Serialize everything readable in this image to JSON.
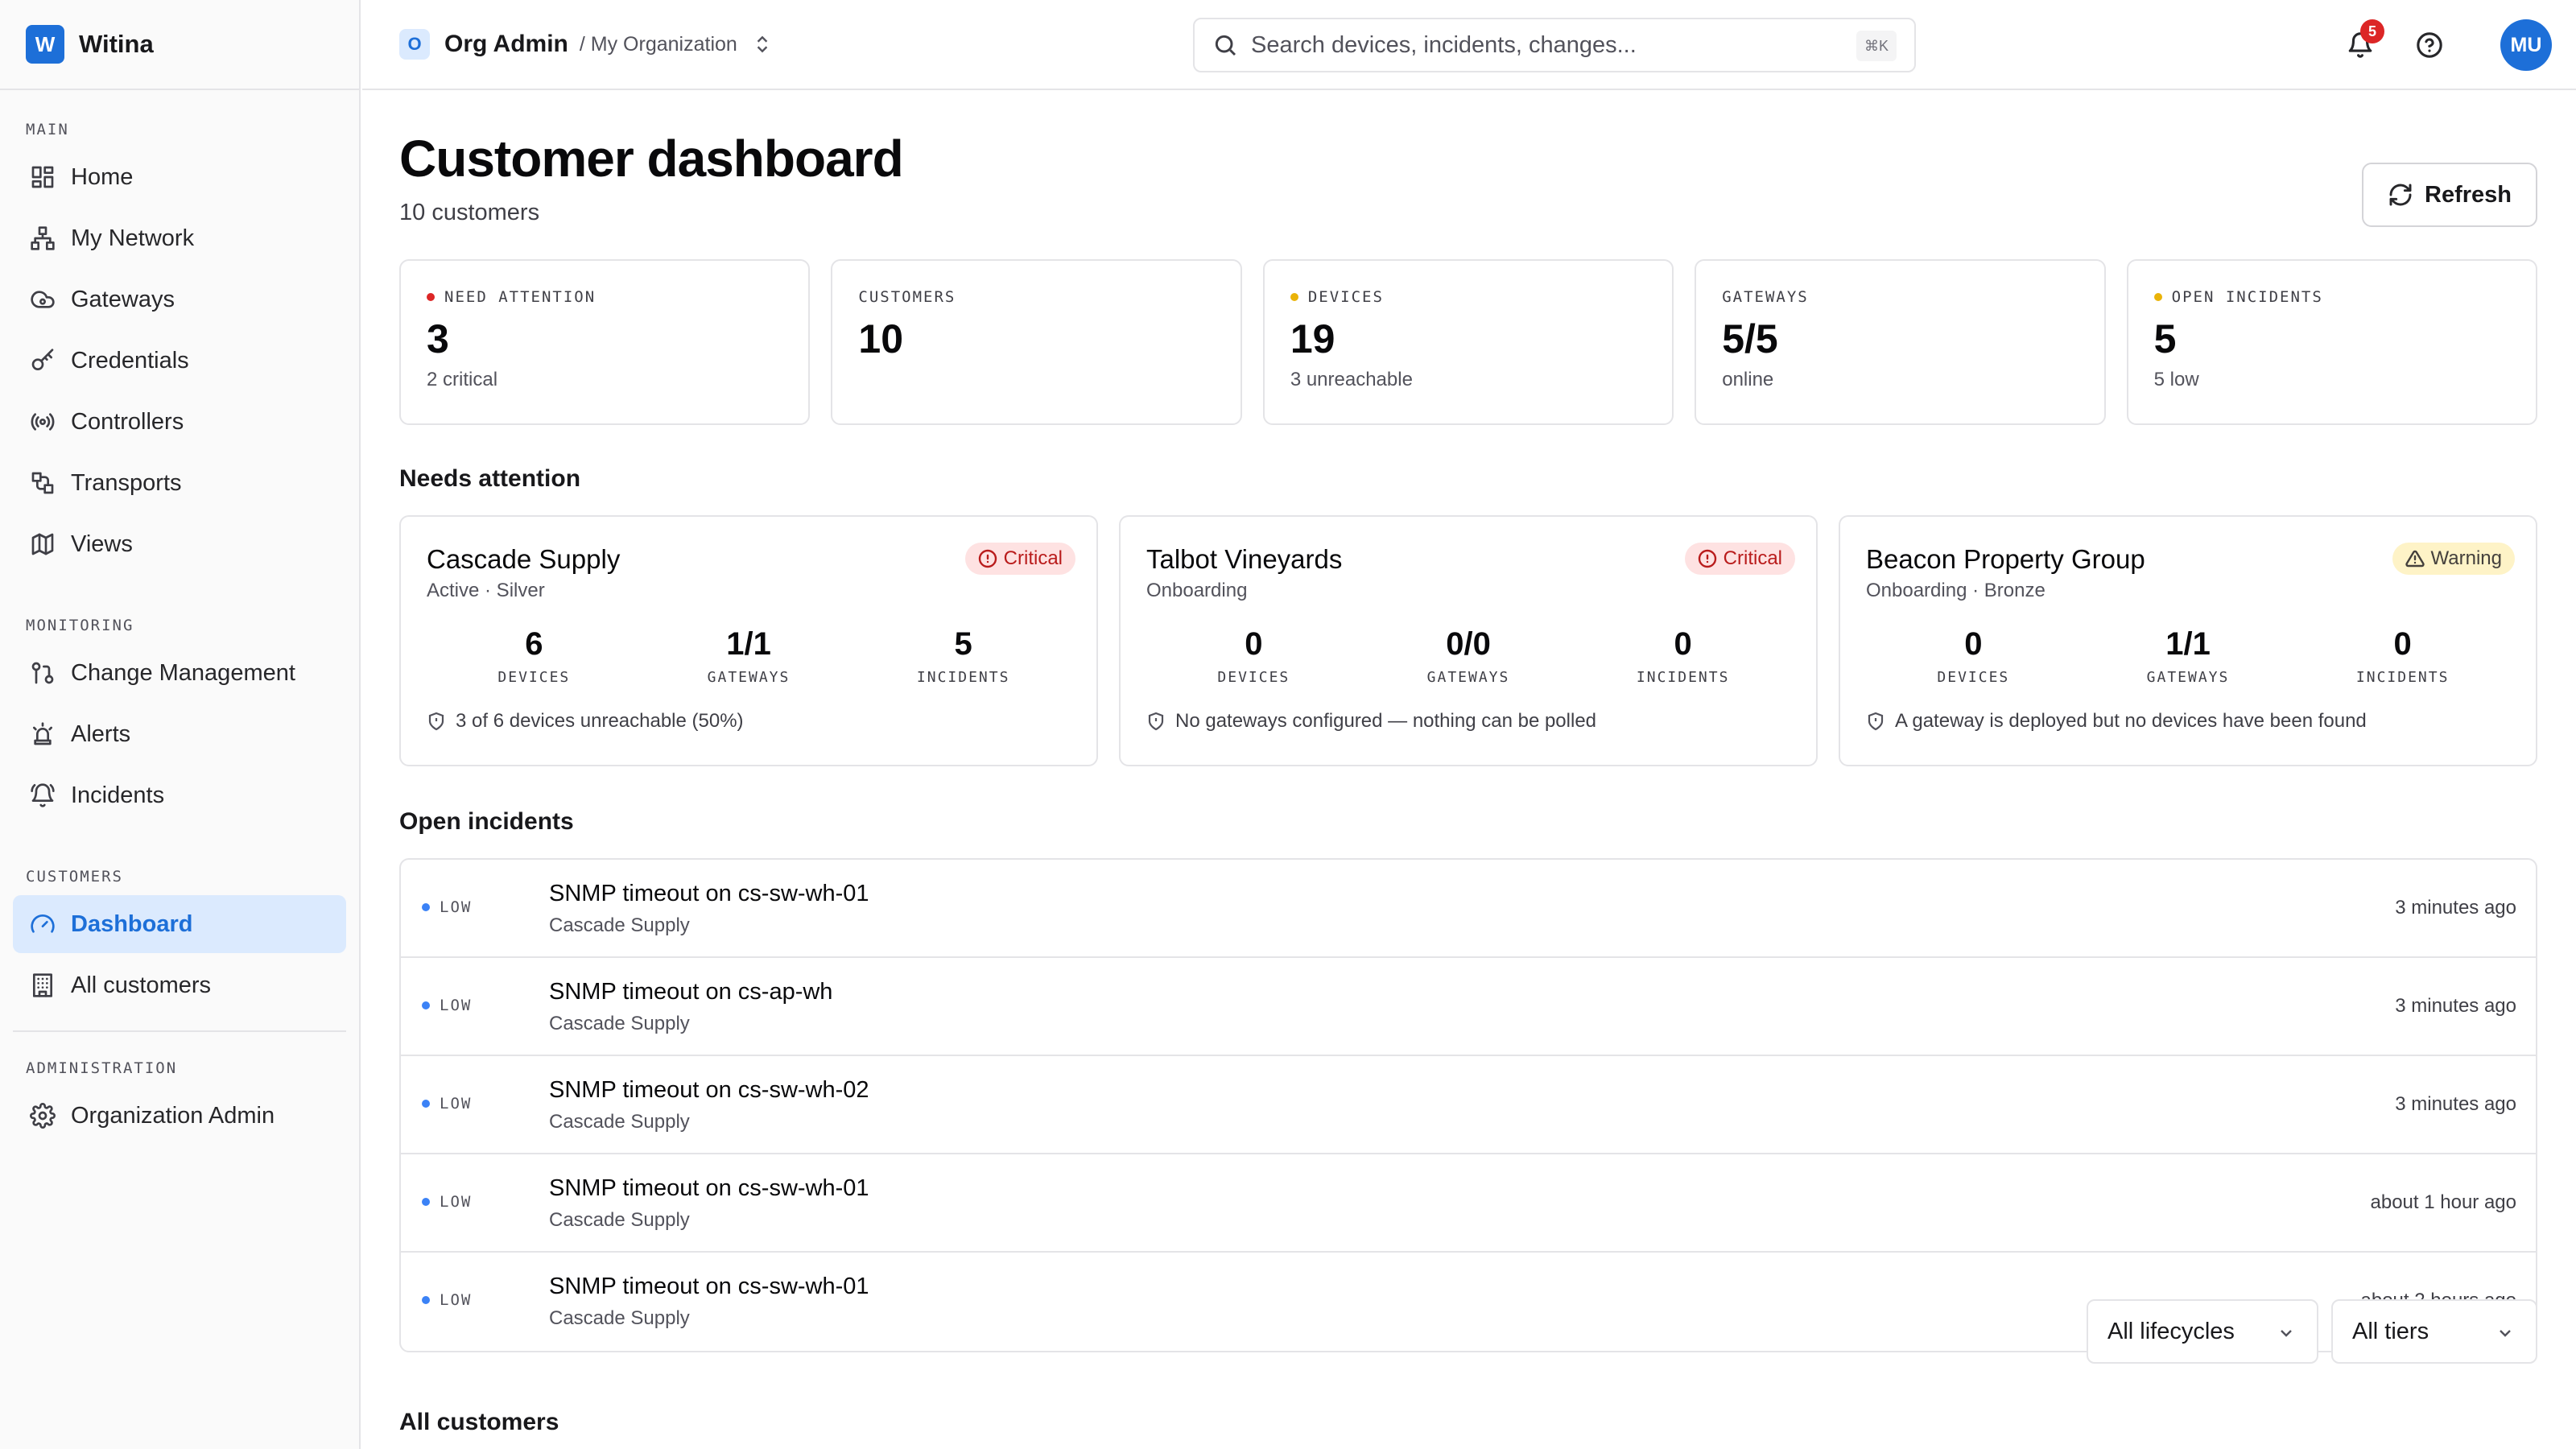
{
  "app": {
    "logo_letter": "W",
    "name": "Witina"
  },
  "sidebar": {
    "sections": [
      {
        "label": "MAIN",
        "items": [
          "Home",
          "My Network",
          "Gateways",
          "Credentials",
          "Controllers",
          "Transports",
          "Views"
        ]
      },
      {
        "label": "MONITORING",
        "items": [
          "Change Management",
          "Alerts",
          "Incidents"
        ]
      },
      {
        "label": "CUSTOMERS",
        "items": [
          "Dashboard",
          "All customers"
        ]
      },
      {
        "label": "ADMINISTRATION",
        "items": [
          "Organization Admin"
        ]
      }
    ],
    "active_item": "Dashboard"
  },
  "topbar": {
    "org_badge": "O",
    "org_title": "Org Admin",
    "org_sub": "/ My Organization",
    "search_placeholder": "Search devices, incidents, changes...",
    "search_shortcut": "⌘K",
    "notification_count": "5",
    "avatar_initials": "MU"
  },
  "page": {
    "title": "Customer dashboard",
    "subtitle": "10 customers",
    "refresh_label": "Refresh"
  },
  "stats": [
    {
      "label": "NEED ATTENTION",
      "value": "3",
      "sub": "2 critical",
      "dot_color": "#dc2626"
    },
    {
      "label": "CUSTOMERS",
      "value": "10",
      "sub": "",
      "dot_color": ""
    },
    {
      "label": "DEVICES",
      "value": "19",
      "sub": "3 unreachable",
      "dot_color": "#eab308"
    },
    {
      "label": "GATEWAYS",
      "value": "5/5",
      "sub": "online",
      "dot_color": ""
    },
    {
      "label": "OPEN INCIDENTS",
      "value": "5",
      "sub": "5 low",
      "dot_color": "#eab308"
    }
  ],
  "needs_attention": {
    "title": "Needs attention",
    "cards": [
      {
        "name": "Cascade Supply",
        "meta": "Active · Silver",
        "status": "Critical",
        "devices": "6",
        "gateways": "1/1",
        "incidents": "5",
        "note": "3 of 6 devices unreachable (50%)"
      },
      {
        "name": "Talbot Vineyards",
        "meta": "Onboarding",
        "status": "Critical",
        "devices": "0",
        "gateways": "0/0",
        "incidents": "0",
        "note": "No gateways configured — nothing can be polled"
      },
      {
        "name": "Beacon Property Group",
        "meta": "Onboarding · Bronze",
        "status": "Warning",
        "devices": "0",
        "gateways": "1/1",
        "incidents": "0",
        "note": "A gateway is deployed but no devices have been found"
      }
    ],
    "metric_labels": {
      "devices": "DEVICES",
      "gateways": "GATEWAYS",
      "incidents": "INCIDENTS"
    }
  },
  "open_incidents": {
    "title": "Open incidents",
    "rows": [
      {
        "severity": "LOW",
        "title": "SNMP timeout on cs-sw-wh-01",
        "customer": "Cascade Supply",
        "time": "3 minutes ago"
      },
      {
        "severity": "LOW",
        "title": "SNMP timeout on cs-ap-wh",
        "customer": "Cascade Supply",
        "time": "3 minutes ago"
      },
      {
        "severity": "LOW",
        "title": "SNMP timeout on cs-sw-wh-02",
        "customer": "Cascade Supply",
        "time": "3 minutes ago"
      },
      {
        "severity": "LOW",
        "title": "SNMP timeout on cs-sw-wh-01",
        "customer": "Cascade Supply",
        "time": "about 1 hour ago"
      },
      {
        "severity": "LOW",
        "title": "SNMP timeout on cs-sw-wh-01",
        "customer": "Cascade Supply",
        "time": "about 2 hours ago"
      }
    ],
    "severity_color": "#3b82f6"
  },
  "all_customers": {
    "title": "All customers",
    "lifecycle_filter": "All lifecycles",
    "tier_filter": "All tiers"
  },
  "colors": {
    "accent": "#1d6fd8",
    "critical": "#dc2626",
    "warning": "#eab308",
    "info": "#3b82f6"
  }
}
